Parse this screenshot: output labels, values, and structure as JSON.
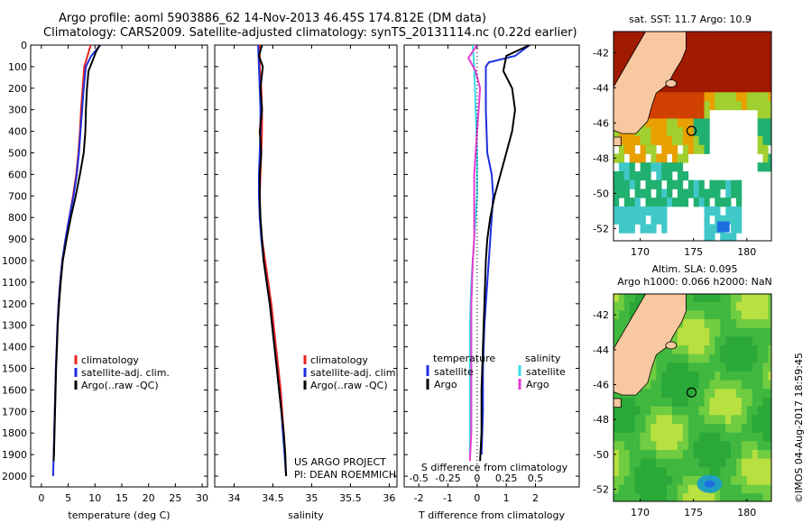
{
  "header": {
    "line1": "Argo profile: aoml 5903886_62 14-Nov-2013 46.45S 174.812E (DM data)",
    "line2": "Climatology: CARS2009. Satellite-adjusted climatology: synTS_20131114.nc (0.22d earlier)"
  },
  "colors": {
    "climatology": "#e8221c",
    "satellite": "#1c2fe0",
    "argo": "#000000",
    "sal_satellite": "#3ad9e6",
    "sal_argo": "#e63ad0",
    "land": "#f8c8a0"
  },
  "chart_data": [
    {
      "type": "line",
      "id": "temperature",
      "xlabel": "temperature (deg C)",
      "xlim": [
        -2,
        31
      ],
      "xticks": [
        0,
        5,
        10,
        15,
        20,
        25,
        30
      ],
      "ylim": [
        0,
        2050
      ],
      "yticks": [
        0,
        100,
        200,
        300,
        400,
        500,
        600,
        700,
        800,
        900,
        1000,
        1100,
        1200,
        1300,
        1400,
        1500,
        1600,
        1700,
        1800,
        1900,
        2000
      ],
      "legend": [
        "climatology",
        "satellite-adj. clim.",
        "Argo(..raw -QC)"
      ],
      "series": [
        {
          "name": "climatology",
          "color": "#e8221c",
          "points": [
            [
              9.2,
              0
            ],
            [
              8.6,
              50
            ],
            [
              8.0,
              100
            ],
            [
              7.7,
              200
            ],
            [
              7.4,
              300
            ],
            [
              7.2,
              400
            ],
            [
              6.9,
              500
            ],
            [
              6.5,
              600
            ],
            [
              5.9,
              700
            ],
            [
              5.2,
              800
            ],
            [
              4.5,
              900
            ],
            [
              3.9,
              1000
            ],
            [
              3.5,
              1100
            ],
            [
              3.2,
              1200
            ],
            [
              3.0,
              1300
            ],
            [
              2.9,
              1400
            ],
            [
              2.7,
              1500
            ],
            [
              2.6,
              1600
            ],
            [
              2.5,
              1700
            ],
            [
              2.4,
              1800
            ],
            [
              2.35,
              1900
            ]
          ]
        },
        {
          "name": "satellite-adj. clim.",
          "color": "#1c2fe0",
          "points": [
            [
              11.0,
              0
            ],
            [
              10.3,
              20
            ],
            [
              9.3,
              50
            ],
            [
              8.3,
              100
            ],
            [
              7.9,
              200
            ],
            [
              7.6,
              300
            ],
            [
              7.3,
              400
            ],
            [
              7.0,
              500
            ],
            [
              6.6,
              600
            ],
            [
              6.0,
              700
            ],
            [
              5.2,
              800
            ],
            [
              4.5,
              900
            ],
            [
              3.9,
              1000
            ],
            [
              3.5,
              1100
            ],
            [
              3.2,
              1200
            ],
            [
              3.0,
              1300
            ],
            [
              2.85,
              1400
            ],
            [
              2.7,
              1500
            ],
            [
              2.6,
              1600
            ],
            [
              2.5,
              1700
            ],
            [
              2.4,
              1800
            ],
            [
              2.3,
              1900
            ],
            [
              2.2,
              2000
            ]
          ]
        },
        {
          "name": "Argo(..raw -QC)",
          "color": "#000000",
          "points": [
            [
              10.9,
              0
            ],
            [
              10.2,
              30
            ],
            [
              9.6,
              70
            ],
            [
              8.8,
              120
            ],
            [
              8.5,
              200
            ],
            [
              8.3,
              300
            ],
            [
              8.2,
              400
            ],
            [
              7.9,
              500
            ],
            [
              7.2,
              600
            ],
            [
              6.4,
              700
            ],
            [
              5.5,
              800
            ],
            [
              4.7,
              900
            ],
            [
              4.0,
              1000
            ],
            [
              3.6,
              1100
            ],
            [
              3.3,
              1200
            ],
            [
              3.05,
              1300
            ],
            [
              2.9,
              1400
            ],
            [
              2.75,
              1500
            ],
            [
              2.65,
              1600
            ],
            [
              2.55,
              1700
            ],
            [
              2.45,
              1800
            ],
            [
              2.35,
              1900
            ],
            [
              2.3,
              1930
            ]
          ]
        }
      ]
    },
    {
      "type": "line",
      "id": "salinity",
      "xlabel": "salinity",
      "xlim": [
        33.75,
        36.1
      ],
      "xticks": [
        34,
        34.5,
        35,
        35.5,
        36
      ],
      "ylim": [
        0,
        2050
      ],
      "legend": [
        "climatology",
        "satellite-adj. clim.",
        "Argo(..raw -QC)"
      ],
      "annotations": [
        "US ARGO PROJECT",
        "PI: DEAN ROEMMICH"
      ],
      "series": [
        {
          "name": "climatology",
          "color": "#e8221c",
          "points": [
            [
              34.33,
              0
            ],
            [
              34.33,
              100
            ],
            [
              34.35,
              200
            ],
            [
              34.36,
              300
            ],
            [
              34.36,
              400
            ],
            [
              34.35,
              500
            ],
            [
              34.34,
              600
            ],
            [
              34.33,
              700
            ],
            [
              34.33,
              800
            ],
            [
              34.36,
              900
            ],
            [
              34.4,
              1000
            ],
            [
              34.44,
              1100
            ],
            [
              34.48,
              1200
            ],
            [
              34.51,
              1300
            ],
            [
              34.54,
              1400
            ],
            [
              34.57,
              1500
            ],
            [
              34.6,
              1600
            ],
            [
              34.62,
              1700
            ],
            [
              34.64,
              1800
            ],
            [
              34.66,
              1900
            ]
          ]
        },
        {
          "name": "satellite-adj. clim.",
          "color": "#1c2fe0",
          "points": [
            [
              34.31,
              0
            ],
            [
              34.32,
              100
            ],
            [
              34.33,
              200
            ],
            [
              34.34,
              300
            ],
            [
              34.34,
              400
            ],
            [
              34.33,
              500
            ],
            [
              34.32,
              600
            ],
            [
              34.32,
              700
            ],
            [
              34.33,
              800
            ],
            [
              34.35,
              900
            ],
            [
              34.38,
              1000
            ],
            [
              34.42,
              1100
            ],
            [
              34.46,
              1200
            ],
            [
              34.49,
              1300
            ],
            [
              34.52,
              1400
            ],
            [
              34.55,
              1500
            ],
            [
              34.58,
              1600
            ],
            [
              34.61,
              1700
            ],
            [
              34.63,
              1800
            ],
            [
              34.65,
              1900
            ],
            [
              34.67,
              2000
            ]
          ]
        },
        {
          "name": "Argo(..raw -QC)",
          "color": "#000000",
          "points": [
            [
              34.36,
              0
            ],
            [
              34.32,
              50
            ],
            [
              34.37,
              100
            ],
            [
              34.34,
              200
            ],
            [
              34.36,
              300
            ],
            [
              34.33,
              400
            ],
            [
              34.35,
              500
            ],
            [
              34.33,
              600
            ],
            [
              34.33,
              700
            ],
            [
              34.34,
              800
            ],
            [
              34.36,
              900
            ],
            [
              34.38,
              1000
            ],
            [
              34.42,
              1100
            ],
            [
              34.46,
              1200
            ],
            [
              34.49,
              1300
            ],
            [
              34.52,
              1400
            ],
            [
              34.55,
              1500
            ],
            [
              34.58,
              1600
            ],
            [
              34.61,
              1700
            ],
            [
              34.64,
              1800
            ],
            [
              34.66,
              1900
            ],
            [
              34.67,
              2000
            ]
          ]
        }
      ]
    },
    {
      "type": "line",
      "id": "difference",
      "xlabel": "T difference from climatology",
      "xlabel_top": "S difference from climatology",
      "xlim": [
        -2.5,
        3.5
      ],
      "xticks": [
        -2,
        -1,
        0,
        1,
        2
      ],
      "xticks_s": [
        "-0.5",
        "-0.25",
        "0",
        "0.25",
        "0.5"
      ],
      "ylim": [
        0,
        2050
      ],
      "legend_temperature": [
        "temperature",
        "satellite",
        "Argo"
      ],
      "legend_salinity": [
        "salinity",
        "satellite",
        "Argo"
      ],
      "series": [
        {
          "name": "T satellite",
          "color": "#1c2fe0",
          "points": [
            [
              1.8,
              0
            ],
            [
              1.3,
              50
            ],
            [
              0.4,
              80
            ],
            [
              0.3,
              100
            ],
            [
              0.3,
              300
            ],
            [
              0.35,
              500
            ],
            [
              0.5,
              600
            ],
            [
              0.55,
              700
            ],
            [
              0.5,
              800
            ],
            [
              0.45,
              900
            ],
            [
              0.4,
              1000
            ],
            [
              0.35,
              1100
            ],
            [
              0.3,
              1200
            ],
            [
              0.25,
              1300
            ],
            [
              0.2,
              1500
            ],
            [
              0.2,
              1700
            ],
            [
              0.15,
              1900
            ]
          ]
        },
        {
          "name": "T Argo",
          "color": "#000000",
          "points": [
            [
              1.8,
              0
            ],
            [
              1.0,
              50
            ],
            [
              0.9,
              120
            ],
            [
              1.2,
              200
            ],
            [
              1.3,
              300
            ],
            [
              1.2,
              400
            ],
            [
              1.0,
              500
            ],
            [
              0.8,
              600
            ],
            [
              0.6,
              700
            ],
            [
              0.45,
              800
            ],
            [
              0.35,
              900
            ],
            [
              0.3,
              1000
            ],
            [
              0.25,
              1200
            ],
            [
              0.2,
              1400
            ],
            [
              0.15,
              1600
            ],
            [
              0.15,
              1800
            ],
            [
              0.1,
              1930
            ]
          ]
        },
        {
          "name": "S satellite",
          "color": "#3ad9e6",
          "points": [
            [
              -0.15,
              0
            ],
            [
              -0.1,
              100
            ],
            [
              -0.05,
              300
            ],
            [
              0.0,
              500
            ],
            [
              0.0,
              700
            ],
            [
              -0.1,
              900
            ],
            [
              -0.2,
              1100
            ],
            [
              -0.25,
              1300
            ],
            [
              -0.25,
              1500
            ],
            [
              -0.25,
              1700
            ],
            [
              -0.25,
              1900
            ]
          ]
        },
        {
          "name": "S Argo",
          "color": "#e63ad0",
          "points": [
            [
              0.0,
              0
            ],
            [
              -0.3,
              60
            ],
            [
              -0.05,
              120
            ],
            [
              0.1,
              200
            ],
            [
              0.05,
              300
            ],
            [
              0.0,
              400
            ],
            [
              -0.05,
              500
            ],
            [
              -0.1,
              600
            ],
            [
              -0.1,
              700
            ],
            [
              -0.1,
              800
            ],
            [
              -0.1,
              900
            ],
            [
              -0.15,
              1000
            ],
            [
              -0.2,
              1200
            ],
            [
              -0.2,
              1400
            ],
            [
              -0.2,
              1600
            ],
            [
              -0.2,
              1800
            ],
            [
              -0.25,
              1930
            ]
          ]
        }
      ]
    },
    {
      "type": "heatmap",
      "id": "sst_map",
      "title": "sat. SST: 11.7  Argo: 10.9",
      "xticks": [
        170,
        175,
        180
      ],
      "yticks": [
        -42,
        -44,
        -46,
        -48,
        -50,
        -52
      ],
      "xlim": [
        167.5,
        182.3
      ],
      "ylim": [
        -52.7,
        -40.8
      ],
      "argo_position": [
        174.812,
        -46.45
      ]
    },
    {
      "type": "heatmap",
      "id": "sla_map",
      "title_line1": "Altim. SLA: 0.095",
      "title_line2": "Argo h1000: 0.066  h2000: NaN",
      "xticks": [
        170,
        175,
        180
      ],
      "yticks": [
        -42,
        -44,
        -46,
        -48,
        -50,
        -52
      ],
      "xlim": [
        167.5,
        182.3
      ],
      "ylim": [
        -52.7,
        -40.8
      ],
      "argo_position": [
        174.812,
        -46.45
      ]
    }
  ],
  "footer": {
    "credit": "©IMOS 04-Aug-2017 18:59:45"
  }
}
